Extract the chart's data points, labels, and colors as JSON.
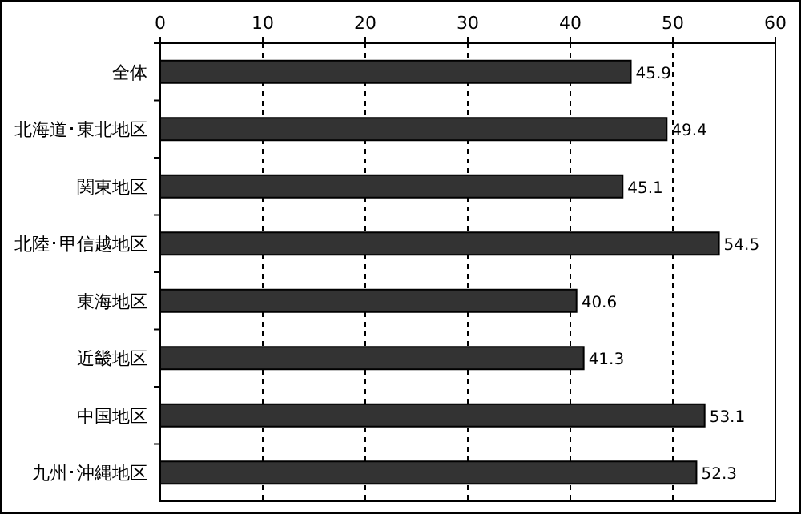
{
  "chart_data": {
    "type": "bar",
    "orientation": "horizontal",
    "categories": [
      "全体",
      "北海道･東北地区",
      "関東地区",
      "北陸･甲信越地区",
      "東海地区",
      "近畿地区",
      "中国地区",
      "九州･沖縄地区"
    ],
    "values": [
      45.9,
      49.4,
      45.1,
      54.5,
      40.6,
      41.3,
      53.1,
      52.3
    ],
    "color": "#333333",
    "xlim": [
      0,
      60
    ],
    "xticks": [
      0,
      10,
      20,
      30,
      40,
      50,
      60
    ],
    "grid": "x",
    "data_labels": true
  }
}
